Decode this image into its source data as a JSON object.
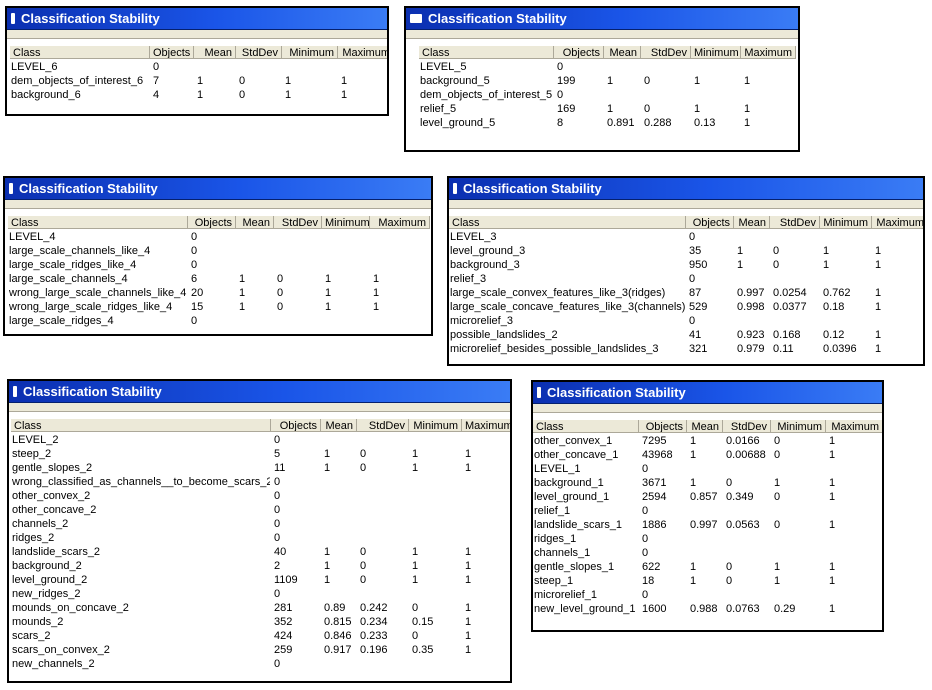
{
  "windows": [
    {
      "id": "w6",
      "title": "Classification Stability",
      "icon": "window-icon",
      "columns": [
        "Class",
        "Objects",
        "Mean",
        "StdDev",
        "Minimum",
        "Maximum"
      ],
      "rows": [
        [
          "LEVEL_6",
          "0",
          "",
          "",
          "",
          ""
        ],
        [
          "dem_objects_of_interest_6",
          "7",
          "1",
          "0",
          "1",
          "1"
        ],
        [
          "background_6",
          "4",
          "1",
          "0",
          "1",
          "1"
        ]
      ]
    },
    {
      "id": "w5",
      "title": "Classification Stability",
      "icon": "window-icon",
      "columns": [
        "Class",
        "Objects",
        "Mean",
        "StdDev",
        "Minimum",
        "Maximum"
      ],
      "rows": [
        [
          "LEVEL_5",
          "0",
          "",
          "",
          "",
          ""
        ],
        [
          "background_5",
          "199",
          "1",
          "0",
          "1",
          "1"
        ],
        [
          "dem_objects_of_interest_5",
          "0",
          "",
          "",
          "",
          ""
        ],
        [
          "relief_5",
          "169",
          "1",
          "0",
          "1",
          "1"
        ],
        [
          "level_ground_5",
          "8",
          "0.891",
          "0.288",
          "0.13",
          "1"
        ]
      ]
    },
    {
      "id": "w4",
      "title": "Classification Stability",
      "icon": "window-icon",
      "columns": [
        "Class",
        "Objects",
        "Mean",
        "StdDev",
        "Minimum",
        "Maximum"
      ],
      "rows": [
        [
          "LEVEL_4",
          "0",
          "",
          "",
          "",
          ""
        ],
        [
          "large_scale_channels_like_4",
          "0",
          "",
          "",
          "",
          ""
        ],
        [
          "large_scale_ridges_like_4",
          "0",
          "",
          "",
          "",
          ""
        ],
        [
          "large_scale_channels_4",
          "6",
          "1",
          "0",
          "1",
          "1"
        ],
        [
          "wrong_large_scale_channels_like_4",
          "20",
          "1",
          "0",
          "1",
          "1"
        ],
        [
          "wrong_large_scale_ridges_like_4",
          "15",
          "1",
          "0",
          "1",
          "1"
        ],
        [
          "large_scale_ridges_4",
          "0",
          "",
          "",
          "",
          ""
        ]
      ]
    },
    {
      "id": "w3",
      "title": "Classification Stability",
      "icon": "window-icon",
      "columns": [
        "Class",
        "Objects",
        "Mean",
        "StdDev",
        "Minimum",
        "Maximum"
      ],
      "rows": [
        [
          "LEVEL_3",
          "0",
          "",
          "",
          "",
          ""
        ],
        [
          "level_ground_3",
          "35",
          "1",
          "0",
          "1",
          "1"
        ],
        [
          "background_3",
          "950",
          "1",
          "0",
          "1",
          "1"
        ],
        [
          "relief_3",
          "0",
          "",
          "",
          "",
          ""
        ],
        [
          "large_scale_convex_features_like_3(ridges)",
          "87",
          "0.997",
          "0.0254",
          "0.762",
          "1"
        ],
        [
          "large_scale_concave_features_like_3(channels)",
          "529",
          "0.998",
          "0.0377",
          "0.18",
          "1"
        ],
        [
          "microrelief_3",
          "0",
          "",
          "",
          "",
          ""
        ],
        [
          "possible_landslides_2",
          "41",
          "0.923",
          "0.168",
          "0.12",
          "1"
        ],
        [
          "microrelief_besides_possible_landslides_3",
          "321",
          "0.979",
          "0.11",
          "0.0396",
          "1"
        ]
      ]
    },
    {
      "id": "w2",
      "title": "Classification Stability",
      "icon": "window-icon",
      "columns": [
        "Class",
        "Objects",
        "Mean",
        "StdDev",
        "Minimum",
        "Maximum"
      ],
      "rows": [
        [
          "LEVEL_2",
          "0",
          "",
          "",
          "",
          ""
        ],
        [
          "steep_2",
          "5",
          "1",
          "0",
          "1",
          "1"
        ],
        [
          "gentle_slopes_2",
          "11",
          "1",
          "0",
          "1",
          "1"
        ],
        [
          "wrong_classified_as_channels__to_become_scars_2",
          "0",
          "",
          "",
          "",
          ""
        ],
        [
          "other_convex_2",
          "0",
          "",
          "",
          "",
          ""
        ],
        [
          "other_concave_2",
          "0",
          "",
          "",
          "",
          ""
        ],
        [
          "channels_2",
          "0",
          "",
          "",
          "",
          ""
        ],
        [
          "ridges_2",
          "0",
          "",
          "",
          "",
          ""
        ],
        [
          "landslide_scars_2",
          "40",
          "1",
          "0",
          "1",
          "1"
        ],
        [
          "background_2",
          "2",
          "1",
          "0",
          "1",
          "1"
        ],
        [
          "level_ground_2",
          "1109",
          "1",
          "0",
          "1",
          "1"
        ],
        [
          "new_ridges_2",
          "0",
          "",
          "",
          "",
          ""
        ],
        [
          "mounds_on_concave_2",
          "281",
          "0.89",
          "0.242",
          "0",
          "1"
        ],
        [
          "mounds_2",
          "352",
          "0.815",
          "0.234",
          "0.15",
          "1"
        ],
        [
          "scars_2",
          "424",
          "0.846",
          "0.233",
          "0",
          "1"
        ],
        [
          "scars_on_convex_2",
          "259",
          "0.917",
          "0.196",
          "0.35",
          "1"
        ],
        [
          "new_channels_2",
          "0",
          "",
          "",
          "",
          ""
        ]
      ]
    },
    {
      "id": "w1",
      "title": "Classification Stability",
      "icon": "window-icon",
      "columns": [
        "Class",
        "Objects",
        "Mean",
        "StdDev",
        "Minimum",
        "Maximum"
      ],
      "rows": [
        [
          "other_convex_1",
          "7295",
          "1",
          "0.0166",
          "0",
          "1"
        ],
        [
          "other_concave_1",
          "43968",
          "1",
          "0.00688",
          "0",
          "1"
        ],
        [
          "LEVEL_1",
          "0",
          "",
          "",
          "",
          ""
        ],
        [
          "background_1",
          "3671",
          "1",
          "0",
          "1",
          "1"
        ],
        [
          "level_ground_1",
          "2594",
          "0.857",
          "0.349",
          "0",
          "1"
        ],
        [
          "relief_1",
          "0",
          "",
          "",
          "",
          ""
        ],
        [
          "landslide_scars_1",
          "1886",
          "0.997",
          "0.0563",
          "0",
          "1"
        ],
        [
          "ridges_1",
          "0",
          "",
          "",
          "",
          ""
        ],
        [
          "channels_1",
          "0",
          "",
          "",
          "",
          ""
        ],
        [
          "gentle_slopes_1",
          "622",
          "1",
          "0",
          "1",
          "1"
        ],
        [
          "steep_1",
          "18",
          "1",
          "0",
          "1",
          "1"
        ],
        [
          "microrelief_1",
          "0",
          "",
          "",
          "",
          ""
        ],
        [
          "new_level_ground_1",
          "1600",
          "0.988",
          "0.0763",
          "0.29",
          "1"
        ]
      ]
    }
  ]
}
